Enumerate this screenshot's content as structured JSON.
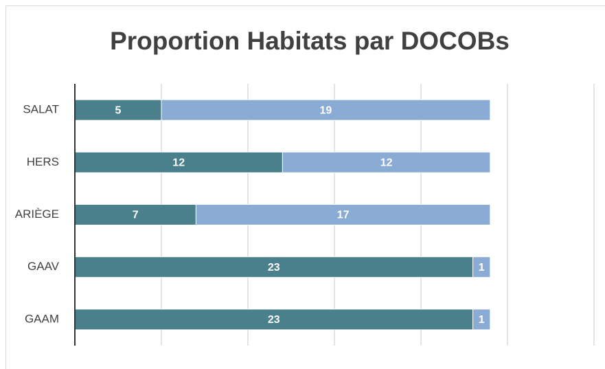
{
  "chart_data": {
    "type": "stacked-bar-horizontal",
    "title": "Proportion Habitats par DOCOBs",
    "categories": [
      "SALAT",
      "HERS",
      "ARIÈGE",
      "GAAV",
      "GAAM"
    ],
    "series": [
      {
        "color": "#4a7f8c",
        "values": [
          5,
          12,
          7,
          23,
          23
        ]
      },
      {
        "color": "#8aabd4",
        "values": [
          19,
          12,
          17,
          1,
          1
        ]
      }
    ],
    "xlim": [
      0,
      30
    ],
    "xticks": [
      0,
      5,
      10,
      15,
      20,
      25,
      30
    ],
    "grid": true
  }
}
